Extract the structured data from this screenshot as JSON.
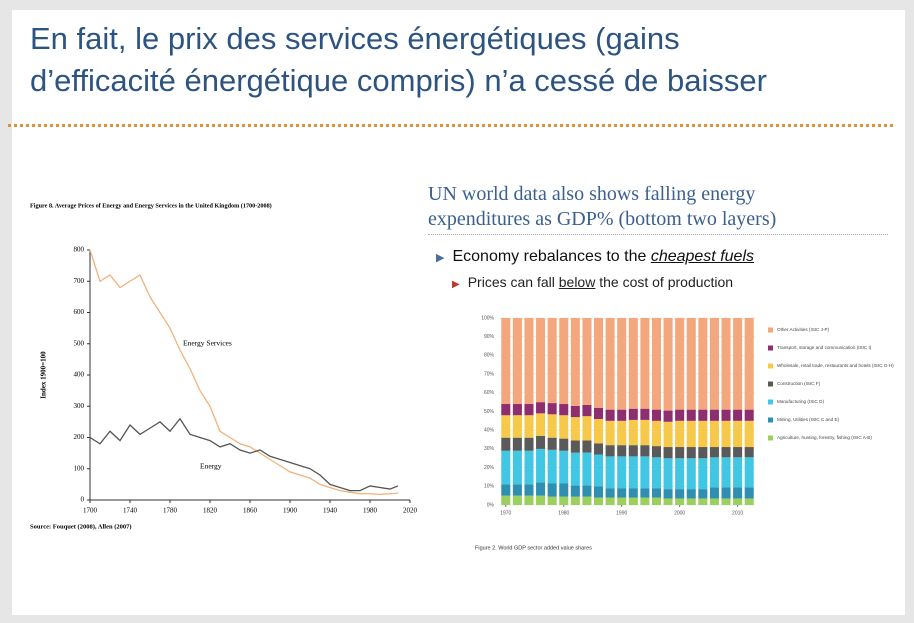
{
  "slide": {
    "title": [
      "En fait, le prix des services énergétiques (gains",
      "d’efficacité énergétique compris) n’a cessé de baisser"
    ],
    "heading": [
      "UN world data also shows falling energy",
      "expenditures as GDP% (bottom two layers)"
    ],
    "bullet": [
      "Economy rebalances to the ",
      "cheapest fuels"
    ],
    "subbullet": [
      "Prices can fall ",
      "below",
      " the cost of production"
    ]
  },
  "chart_data": [
    {
      "type": "line",
      "title": "Figure 8. Average Prices of Energy and Energy Services in the United Kingdom (1700-2008)",
      "ylabel": "Index 1900=100",
      "source": "Source: Fouquet (2008), Allen (2007)",
      "x": [
        1700,
        1710,
        1720,
        1730,
        1740,
        1750,
        1760,
        1770,
        1780,
        1790,
        1800,
        1810,
        1820,
        1830,
        1840,
        1850,
        1860,
        1870,
        1880,
        1890,
        1900,
        1910,
        1920,
        1930,
        1940,
        1950,
        1960,
        1970,
        1980,
        1990,
        2000,
        2008
      ],
      "series": [
        {
          "name": "Energy Services",
          "color": "#f0b27a",
          "values": [
            800,
            700,
            720,
            680,
            700,
            720,
            650,
            600,
            550,
            480,
            420,
            350,
            300,
            220,
            200,
            180,
            170,
            150,
            130,
            110,
            90,
            80,
            70,
            50,
            40,
            30,
            25,
            20,
            20,
            18,
            20,
            22
          ]
        },
        {
          "name": "Energy",
          "color": "#555555",
          "values": [
            200,
            180,
            220,
            190,
            240,
            210,
            230,
            250,
            220,
            260,
            210,
            200,
            190,
            170,
            180,
            160,
            150,
            160,
            140,
            130,
            120,
            110,
            100,
            80,
            50,
            40,
            30,
            30,
            45,
            40,
            35,
            45
          ]
        }
      ],
      "xlim": [
        1700,
        2020
      ],
      "xticks": [
        1700,
        1740,
        1780,
        1820,
        1860,
        1900,
        1940,
        1980,
        2020
      ],
      "ylim": [
        0,
        800
      ],
      "yticks": [
        0,
        100,
        200,
        300,
        400,
        500,
        600,
        700,
        800
      ]
    },
    {
      "type": "stacked-bar",
      "caption": "Figure 2. World GDP sector added value shares",
      "x": [
        1970,
        1972,
        1974,
        1976,
        1978,
        1980,
        1982,
        1984,
        1986,
        1988,
        1990,
        1992,
        1994,
        1996,
        1998,
        2000,
        2002,
        2004,
        2006,
        2008,
        2010,
        2012
      ],
      "series": [
        {
          "name": "Agriculture, hunting, forestry, fishing (ISIC A-B)",
          "color": "#9bcf5e",
          "values": [
            5,
            5,
            5,
            5,
            4.5,
            4.5,
            4.5,
            4.5,
            4,
            4,
            4,
            4,
            4,
            4,
            3.5,
            3.5,
            3.5,
            3.5,
            3.5,
            3.5,
            3.5,
            3.5
          ]
        },
        {
          "name": "Mining, Utilities (ISIC C and E)",
          "color": "#2f8fb0",
          "values": [
            6,
            6,
            6,
            7,
            7,
            7,
            6,
            6,
            6,
            5,
            5,
            5,
            5,
            5,
            5,
            5,
            5,
            5,
            6,
            6,
            6,
            6
          ]
        },
        {
          "name": "Manufacturing (ISIC D)",
          "color": "#41c6e3",
          "values": [
            18,
            18,
            18,
            18,
            18,
            17.5,
            17.5,
            17.5,
            17,
            17,
            17,
            17,
            17,
            16.5,
            16.5,
            16.5,
            16.5,
            16.5,
            16,
            16,
            16,
            16
          ]
        },
        {
          "name": "Construction (ISIC F)",
          "color": "#5a5a5a",
          "values": [
            7,
            7,
            7,
            7,
            6.5,
            6.5,
            6.5,
            6.5,
            6,
            6,
            6,
            6,
            6,
            6,
            6,
            6,
            6,
            6,
            5.5,
            5.5,
            5.5,
            5.5
          ]
        },
        {
          "name": "Wholesale, retail trade, restaurants and hotels (ISIC G-H)",
          "color": "#f6c94a",
          "values": [
            12,
            12,
            12,
            12,
            12.5,
            12.5,
            12.5,
            13,
            13,
            13,
            13,
            13.5,
            13.5,
            13.5,
            13.5,
            14,
            14,
            14,
            14,
            14,
            14,
            14
          ]
        },
        {
          "name": "Transport, storage and communication (ISIC I)",
          "color": "#8e2e6e",
          "values": [
            6,
            6,
            6,
            6,
            6,
            6,
            6,
            6,
            6,
            6,
            6,
            6,
            6,
            6,
            6,
            6,
            6,
            6,
            6,
            6,
            6,
            6
          ]
        },
        {
          "name": "Other Activities (ISIC J-P)",
          "color": "#f4a77c",
          "values": [
            46,
            46,
            46,
            45,
            45.5,
            46,
            47,
            46.5,
            48,
            49,
            49,
            48.5,
            48.5,
            49,
            49.5,
            49,
            49,
            49,
            49,
            49,
            49,
            49
          ]
        }
      ],
      "xlim": [
        1969,
        2013
      ],
      "xticks": [
        1970,
        1980,
        1990,
        2000,
        2010
      ],
      "ylim": [
        0,
        100
      ],
      "yticks": [
        {
          "value": 0,
          "label": "0%"
        },
        {
          "value": 10,
          "label": "10%"
        },
        {
          "value": 20,
          "label": "20%"
        },
        {
          "value": 30,
          "label": "30%"
        },
        {
          "value": 40,
          "label": "40%"
        },
        {
          "value": 50,
          "label": "50%"
        },
        {
          "value": 60,
          "label": "60%"
        },
        {
          "value": 70,
          "label": "70%"
        },
        {
          "value": 80,
          "label": "80%"
        },
        {
          "value": 90,
          "label": "90%"
        },
        {
          "value": 100,
          "label": "100%"
        }
      ]
    }
  ]
}
